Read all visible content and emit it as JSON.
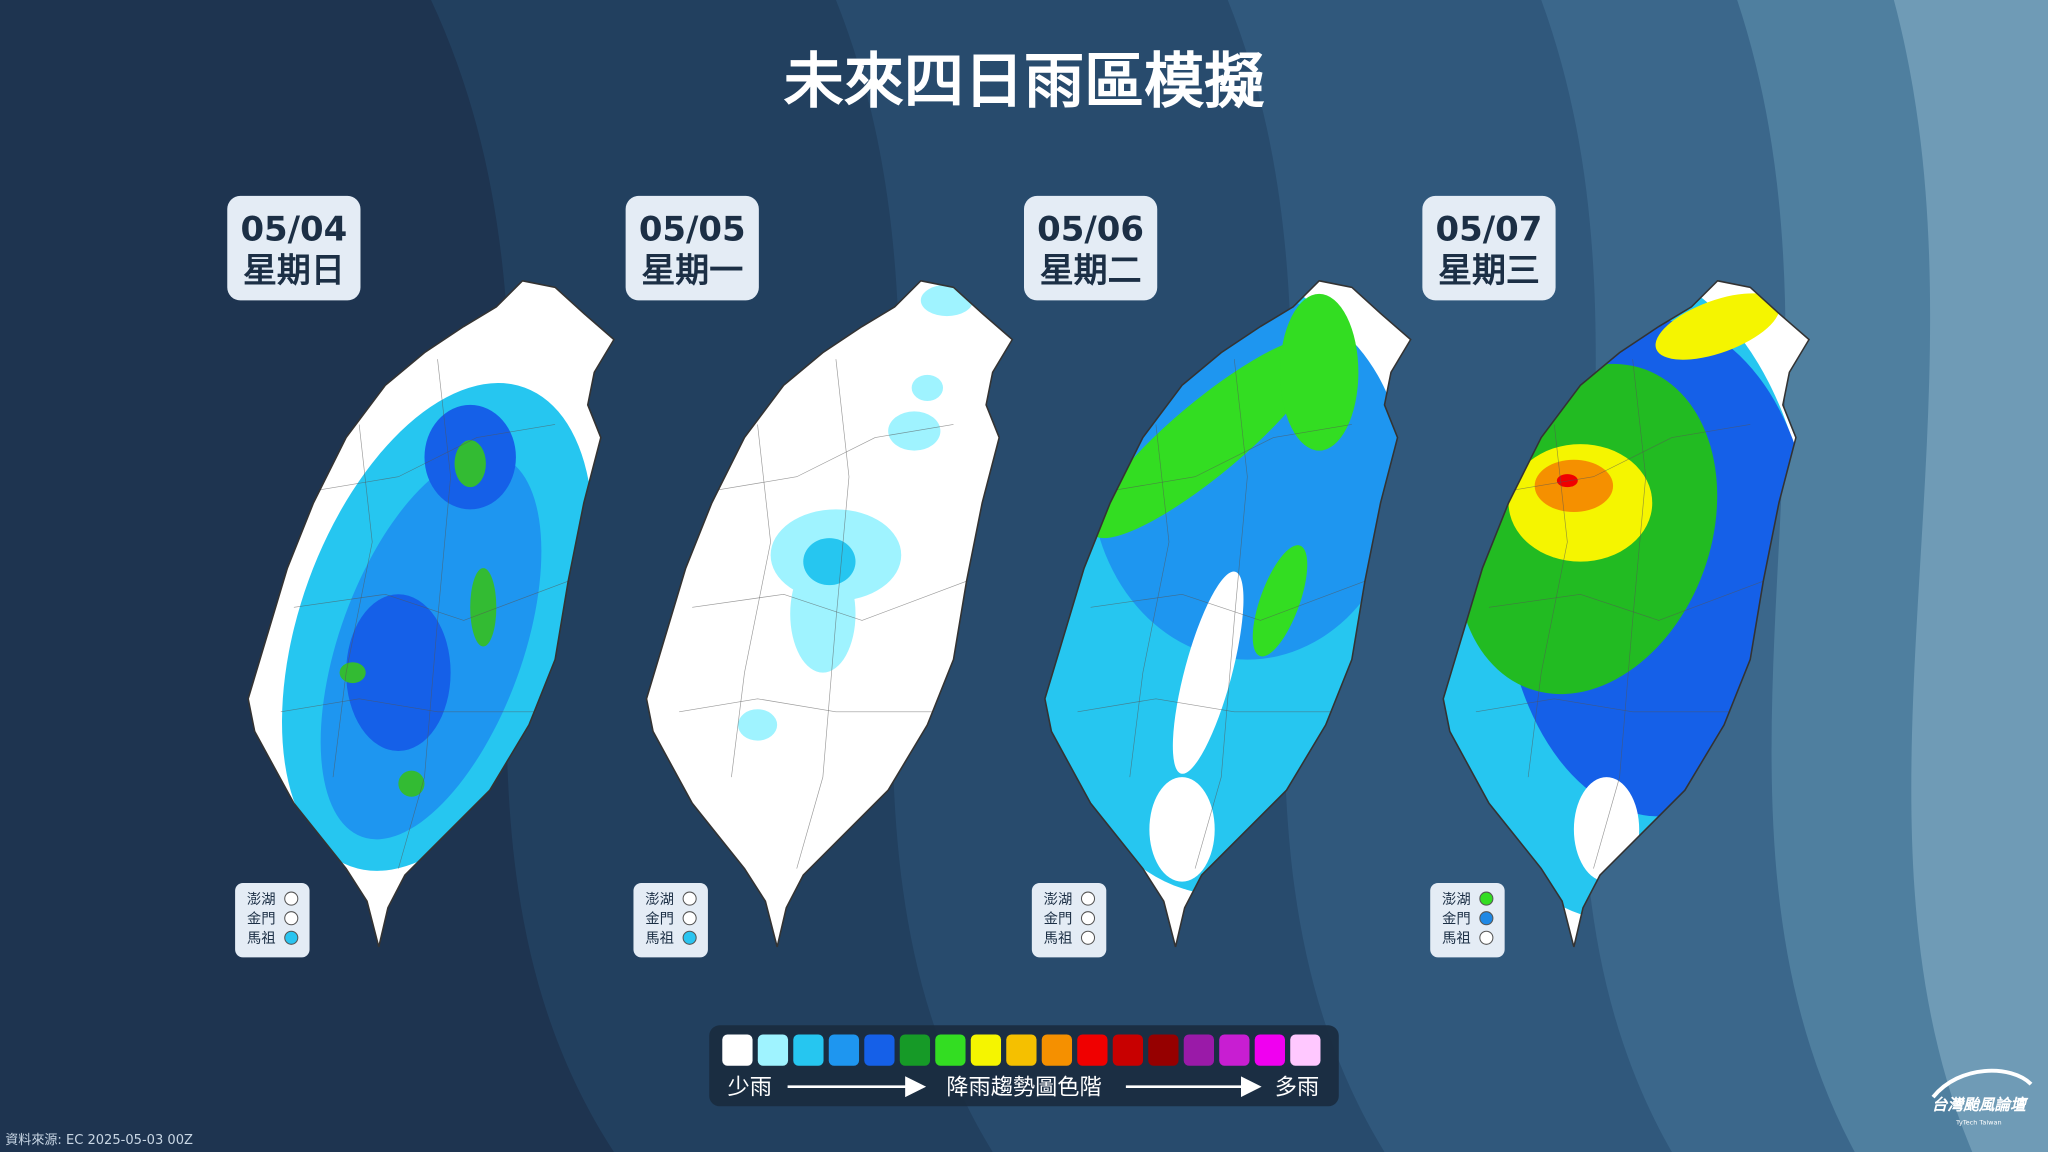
{
  "title": "未來四日雨區模擬",
  "panels": [
    {
      "date": "05/04",
      "weekday": "星期日",
      "islands": [
        {
          "name": "澎湖",
          "color": "#ffffff"
        },
        {
          "name": "金門",
          "color": "#ffffff"
        },
        {
          "name": "馬祖",
          "color": "#29c4f0"
        }
      ]
    },
    {
      "date": "05/05",
      "weekday": "星期一",
      "islands": [
        {
          "name": "澎湖",
          "color": "#ffffff"
        },
        {
          "name": "金門",
          "color": "#ffffff"
        },
        {
          "name": "馬祖",
          "color": "#29c4f0"
        }
      ]
    },
    {
      "date": "05/06",
      "weekday": "星期二",
      "islands": [
        {
          "name": "澎湖",
          "color": "#ffffff"
        },
        {
          "name": "金門",
          "color": "#ffffff"
        },
        {
          "name": "馬祖",
          "color": "#ffffff"
        }
      ]
    },
    {
      "date": "05/07",
      "weekday": "星期三",
      "islands": [
        {
          "name": "澎湖",
          "color": "#33dd22"
        },
        {
          "name": "金門",
          "color": "#1e88e5"
        },
        {
          "name": "馬祖",
          "color": "#ffffff"
        }
      ]
    }
  ],
  "legend": {
    "colors": [
      "#ffffff",
      "#9ff3ff",
      "#26c6f0",
      "#1e96f0",
      "#1560e8",
      "#169a27",
      "#33dd22",
      "#f5f500",
      "#f5c000",
      "#f59000",
      "#f00000",
      "#c80000",
      "#960000",
      "#9a1aa8",
      "#c81ed2",
      "#f000f0",
      "#ffc8ff"
    ],
    "low_label": "少雨",
    "title": "降雨趨勢圖色階",
    "high_label": "多雨"
  },
  "source": "資料來源: EC 2025-05-03 00Z",
  "logo": {
    "name": "台灣颱風論壇",
    "subtitle": "TyTech Taiwan"
  }
}
